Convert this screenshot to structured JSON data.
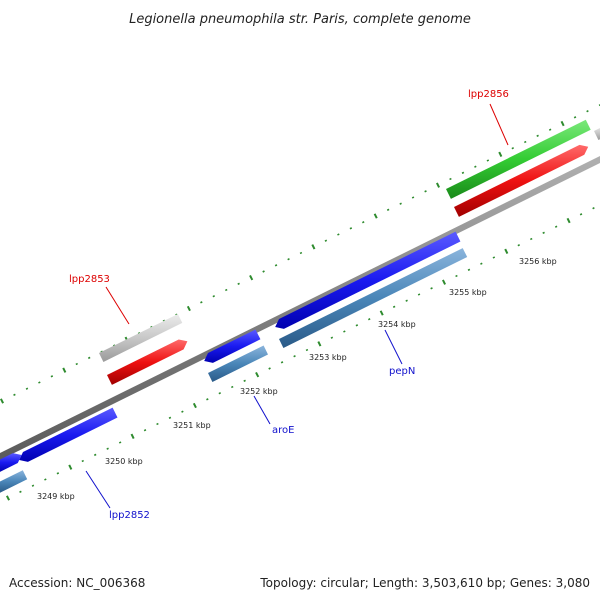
{
  "title": "Legionella pneumophila str. Paris, complete genome",
  "footer": {
    "accession": "Accession: NC_006368",
    "summary": "Topology: circular; Length: 3,503,610 bp; Genes: 3,080"
  },
  "colors": {
    "backbone": "#808080",
    "tick": "#2e8b2e",
    "forward_cds": "#1010ee",
    "reverse_cds": "#4682b4",
    "forward_rna": "#33cc33",
    "reverse_rna": "#ee1111",
    "other": "#c8c8c8",
    "label_forward": "#1010cc",
    "label_reverse": "#dd0000"
  },
  "ticks": [
    {
      "label": "3249 kbp"
    },
    {
      "label": "3250 kbp"
    },
    {
      "label": "3251 kbp"
    },
    {
      "label": "3252 kbp"
    },
    {
      "label": "3253 kbp"
    },
    {
      "label": "3254 kbp"
    },
    {
      "label": "3255 kbp"
    },
    {
      "label": "3256 kbp"
    }
  ],
  "genes": [
    {
      "name": "lpp2852",
      "strand": "forward"
    },
    {
      "name": "aroE",
      "strand": "forward"
    },
    {
      "name": "pepN",
      "strand": "forward"
    },
    {
      "name": "lpp2853",
      "strand": "reverse"
    },
    {
      "name": "lpp2856",
      "strand": "reverse"
    }
  ]
}
